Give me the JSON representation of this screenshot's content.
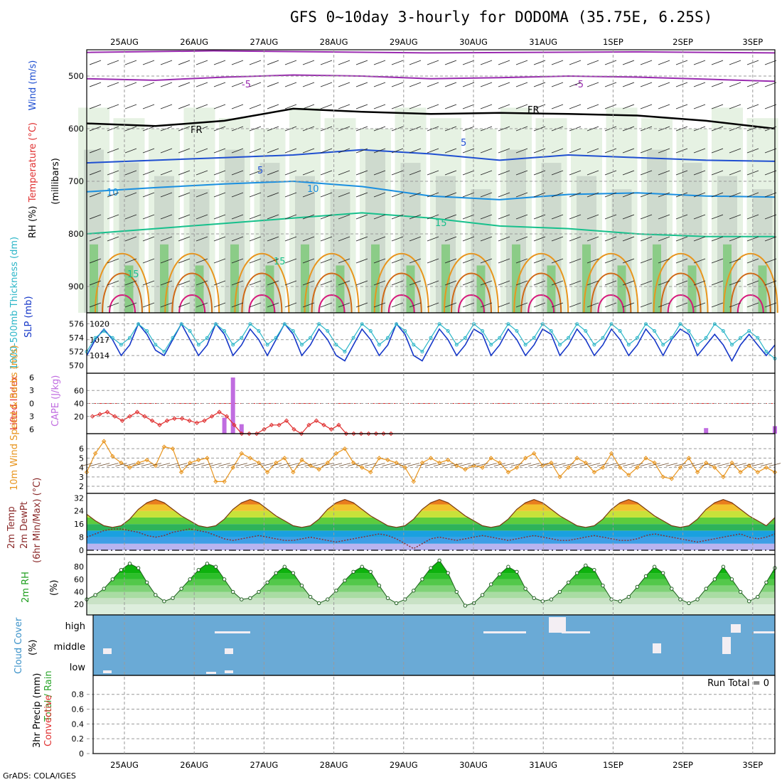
{
  "title": "GFS 0~10day 3-hourly for DODOMA (35.75E, 6.25S)",
  "credit": "GrADS: COLA/IGES",
  "run_total_label": "Run Total = 0",
  "colors": {
    "green_light": "#e6f2e3",
    "green_mid": "#b8d9b0",
    "green_dark": "#7fc97a",
    "gray_rh": "#c8d3c8",
    "purple": "#9a2bb0",
    "blue": "#1f4fd1",
    "lightblue": "#1a8fe0",
    "teal": "#17c08c",
    "orange": "#e8951e",
    "darkorange": "#d06a16",
    "magenta": "#d6187a",
    "slp": "#1436c8",
    "thickness": "#2cb6c8",
    "li": "#e03030",
    "cape": "#c06ce0",
    "wind": "#e8951e",
    "cloud_bg": "#6aaad6",
    "cloud_fill": "#f3eef3"
  },
  "chart_data": [
    {
      "type": "heatmap",
      "name": "upper_air",
      "title": "GFS 0~10day 3-hourly for DODOMA (35.75E, 6.25S)",
      "dates": [
        "25AUG",
        "26AUG",
        "27AUG",
        "28AUG",
        "29AUG",
        "30AUG",
        "31AUG",
        "1SEP",
        "2SEP",
        "3SEP"
      ],
      "ylabel_parts": [
        "RH (%)",
        "Temperature (°C)",
        "Wind (m/s)"
      ],
      "yaxis_unit": "(millibars)",
      "yticks": [
        500,
        600,
        700,
        800,
        900
      ],
      "ylim": [
        450,
        950
      ],
      "contour_labels": [
        "-5",
        "-5",
        "FR",
        "FR",
        "5",
        "5",
        "10",
        "10",
        "15",
        "15",
        "15"
      ],
      "isotherms": [
        {
          "label": "-5",
          "pressure": [
            505,
            508,
            502,
            498,
            500,
            505,
            503,
            500,
            502,
            506,
            510
          ]
        },
        {
          "label": "FR",
          "pressure": [
            590,
            595,
            585,
            562,
            568,
            572,
            570,
            572,
            575,
            585,
            600
          ]
        },
        {
          "label": "5",
          "pressure": [
            665,
            660,
            655,
            650,
            640,
            648,
            660,
            650,
            655,
            660,
            662
          ]
        },
        {
          "label": "10",
          "pressure": [
            720,
            712,
            705,
            700,
            710,
            728,
            735,
            725,
            722,
            728,
            730
          ]
        },
        {
          "label": "15",
          "pressure": [
            800,
            790,
            780,
            770,
            760,
            770,
            785,
            790,
            800,
            805,
            805
          ]
        }
      ]
    },
    {
      "type": "line",
      "name": "slp_thickness",
      "ylabels": [
        "1000-500mb Thickness (dm)",
        "SLP (mb)"
      ],
      "left_ticks": [
        570,
        572,
        574,
        576
      ],
      "right_ticks": [
        1014,
        1017,
        1020
      ],
      "series": [
        {
          "name": "SLP (mb)",
          "values": [
            1014,
            1017,
            1019,
            1017,
            1014,
            1016,
            1020,
            1018,
            1015,
            1014,
            1017,
            1020,
            1017,
            1014,
            1016,
            1020,
            1018,
            1014,
            1016,
            1019,
            1017,
            1014,
            1017,
            1020,
            1018,
            1014,
            1016,
            1019,
            1017,
            1014,
            1013,
            1016,
            1019,
            1017,
            1014,
            1016,
            1020,
            1018,
            1014,
            1013,
            1016,
            1019,
            1017,
            1014,
            1016,
            1019,
            1018,
            1014,
            1016,
            1019,
            1017,
            1014,
            1016,
            1019,
            1018,
            1014,
            1016,
            1019,
            1017,
            1014,
            1016,
            1019,
            1017,
            1014,
            1016,
            1019,
            1017,
            1014,
            1017,
            1019,
            1018,
            1014,
            1016,
            1018,
            1016,
            1013,
            1016,
            1018,
            1016,
            1014,
            1016
          ]
        },
        {
          "name": "1000-500mb Thickness (dm)",
          "values": [
            572,
            574,
            575,
            574,
            573,
            574,
            576,
            575,
            573,
            572,
            574,
            576,
            575,
            573,
            574,
            576,
            575,
            573,
            574,
            576,
            575,
            573,
            574,
            576,
            575,
            573,
            574,
            576,
            575,
            573,
            572,
            574,
            576,
            575,
            573,
            574,
            576,
            575,
            573,
            572,
            574,
            576,
            575,
            573,
            574,
            576,
            575,
            573,
            574,
            576,
            575,
            573,
            574,
            576,
            575,
            573,
            574,
            576,
            575,
            573,
            574,
            576,
            575,
            573,
            574,
            576,
            575,
            573,
            574,
            576,
            575,
            573,
            574,
            576,
            575,
            573,
            574,
            575,
            574,
            572,
            571
          ]
        }
      ]
    },
    {
      "type": "bar",
      "name": "li_cape",
      "ylabels": [
        "Lifted Index",
        "CAPE (J/kg)"
      ],
      "li_ticks": [
        -6,
        -3,
        0,
        3,
        6
      ],
      "cape_ticks": [
        20,
        40,
        60
      ],
      "li_values": [
        3,
        2.5,
        2,
        3,
        4,
        3,
        2,
        3,
        4,
        5,
        4,
        3.5,
        3.5,
        4,
        4.5,
        4,
        3,
        2,
        3,
        5,
        7,
        7,
        7,
        6,
        5,
        5,
        4,
        6,
        7,
        5,
        4,
        5,
        6,
        5,
        7,
        7,
        7,
        7,
        7,
        7,
        7
      ],
      "cape_values": [
        0,
        0,
        0,
        0,
        0,
        0,
        0,
        0,
        0,
        0,
        0,
        0,
        0,
        0,
        0,
        0,
        18,
        80,
        8,
        0,
        0,
        0,
        0,
        0,
        0,
        0,
        0,
        0,
        0,
        0,
        0,
        0,
        0,
        0,
        0,
        0,
        0,
        0,
        0,
        0,
        0,
        0,
        0,
        0,
        0,
        0,
        0,
        0,
        0,
        0,
        0,
        0,
        0,
        0,
        0,
        0,
        0,
        0,
        0,
        0,
        0,
        0,
        0,
        0,
        0,
        0,
        0,
        0,
        0,
        0,
        0,
        0,
        2,
        0,
        0,
        0,
        0,
        0,
        0,
        0,
        5
      ]
    },
    {
      "type": "line",
      "name": "wind10m",
      "ylabels": [
        "10m Wind Speed & Barbs (m/s)"
      ],
      "yticks": [
        2,
        3,
        4,
        5,
        6
      ],
      "values": [
        3.5,
        5.5,
        6.8,
        5.2,
        4.5,
        4.0,
        4.5,
        4.8,
        4.2,
        6.2,
        6.0,
        3.5,
        4.5,
        4.8,
        5.0,
        2.5,
        2.5,
        4.0,
        5.5,
        5.0,
        4.5,
        3.5,
        4.5,
        5.0,
        3.5,
        4.8,
        4.2,
        3.8,
        4.5,
        5.5,
        6.0,
        4.5,
        4.0,
        3.5,
        5.0,
        4.8,
        4.5,
        4.0,
        2.5,
        4.5,
        5.0,
        4.5,
        4.8,
        4.2,
        3.8,
        4.2,
        4.0,
        5.0,
        4.5,
        3.5,
        4.0,
        5.0,
        5.5,
        4.2,
        4.5,
        3.0,
        4.0,
        5.0,
        4.5,
        3.5,
        4.0,
        5.5,
        4.0,
        3.2,
        4.0,
        5.0,
        4.5,
        3.0,
        2.8,
        4.0,
        5.0,
        3.5,
        4.5,
        4.0,
        3.0,
        4.5,
        3.5,
        4.2,
        3.5,
        4.0,
        3.5
      ]
    },
    {
      "type": "area",
      "name": "temp_dewpt",
      "ylabels": [
        "2m Temp",
        "2m DewPt",
        "(6hr Min/Max) (°C)"
      ],
      "yticks": [
        0,
        8,
        16,
        24,
        32
      ],
      "temp": [
        22,
        18,
        15,
        14,
        15,
        19,
        25,
        29,
        31,
        29,
        25,
        21,
        18,
        15,
        14,
        15,
        19,
        25,
        29,
        31,
        29,
        25,
        21,
        18,
        15,
        14,
        15,
        19,
        25,
        29,
        31,
        29,
        25,
        21,
        18,
        15,
        14,
        15,
        19,
        25,
        29,
        31,
        29,
        25,
        21,
        18,
        15,
        14,
        15,
        19,
        25,
        29,
        31,
        29,
        25,
        21,
        18,
        15,
        14,
        15,
        19,
        25,
        29,
        31,
        29,
        25,
        21,
        18,
        15,
        14,
        15,
        19,
        25,
        29,
        31,
        29,
        25,
        21,
        18,
        15,
        20
      ],
      "dewpt": [
        8,
        10,
        12,
        13,
        13,
        12,
        11,
        9,
        8,
        9,
        11,
        12,
        13,
        12,
        11,
        9,
        7,
        6,
        7,
        8,
        9,
        8,
        7,
        6,
        6,
        7,
        8,
        7,
        6,
        5,
        6,
        7,
        8,
        9,
        10,
        9,
        7,
        4,
        1,
        4,
        7,
        8,
        7,
        6,
        7,
        8,
        9,
        8,
        7,
        6,
        7,
        8,
        9,
        8,
        7,
        6,
        6,
        7,
        8,
        9,
        8,
        7,
        6,
        6,
        7,
        9,
        10,
        9,
        8,
        7,
        6,
        5,
        6,
        7,
        8,
        9,
        10,
        8,
        7,
        8,
        10
      ]
    },
    {
      "type": "area",
      "name": "rh2m",
      "ylabels": [
        "2m RH",
        "(%)"
      ],
      "yticks": [
        20,
        40,
        60,
        80
      ],
      "values": [
        28,
        35,
        45,
        60,
        75,
        85,
        78,
        55,
        35,
        25,
        30,
        45,
        60,
        75,
        85,
        80,
        60,
        40,
        28,
        30,
        40,
        55,
        70,
        80,
        70,
        50,
        32,
        22,
        28,
        42,
        58,
        72,
        80,
        72,
        50,
        30,
        22,
        28,
        42,
        60,
        78,
        90,
        70,
        40,
        18,
        22,
        35,
        52,
        68,
        80,
        72,
        45,
        30,
        25,
        28,
        40,
        55,
        70,
        82,
        75,
        50,
        28,
        25,
        32,
        48,
        65,
        80,
        70,
        45,
        28,
        22,
        28,
        45,
        60,
        80,
        60,
        40,
        25,
        32,
        55,
        78
      ]
    },
    {
      "type": "table",
      "name": "cloud_cover",
      "ylabels": [
        "Cloud Cover",
        "(%)"
      ],
      "levels": [
        "high",
        "middle",
        "low"
      ]
    },
    {
      "type": "bar",
      "name": "precip",
      "ylabels": [
        "Total / Rain",
        "Convective",
        "3hr Precip (mm)"
      ],
      "yticks": [
        0,
        0.2,
        0.4,
        0.6,
        0.8
      ],
      "values": [
        0,
        0,
        0,
        0,
        0,
        0,
        0,
        0,
        0,
        0,
        0,
        0,
        0,
        0,
        0,
        0,
        0,
        0,
        0,
        0,
        0,
        0,
        0,
        0,
        0,
        0,
        0,
        0,
        0,
        0,
        0,
        0,
        0,
        0,
        0,
        0,
        0,
        0,
        0,
        0,
        0,
        0,
        0,
        0,
        0,
        0,
        0,
        0,
        0,
        0,
        0,
        0,
        0,
        0,
        0,
        0,
        0,
        0,
        0,
        0,
        0,
        0,
        0,
        0,
        0,
        0,
        0,
        0,
        0,
        0,
        0,
        0,
        0,
        0,
        0,
        0,
        0,
        0,
        0,
        0,
        0
      ]
    }
  ]
}
